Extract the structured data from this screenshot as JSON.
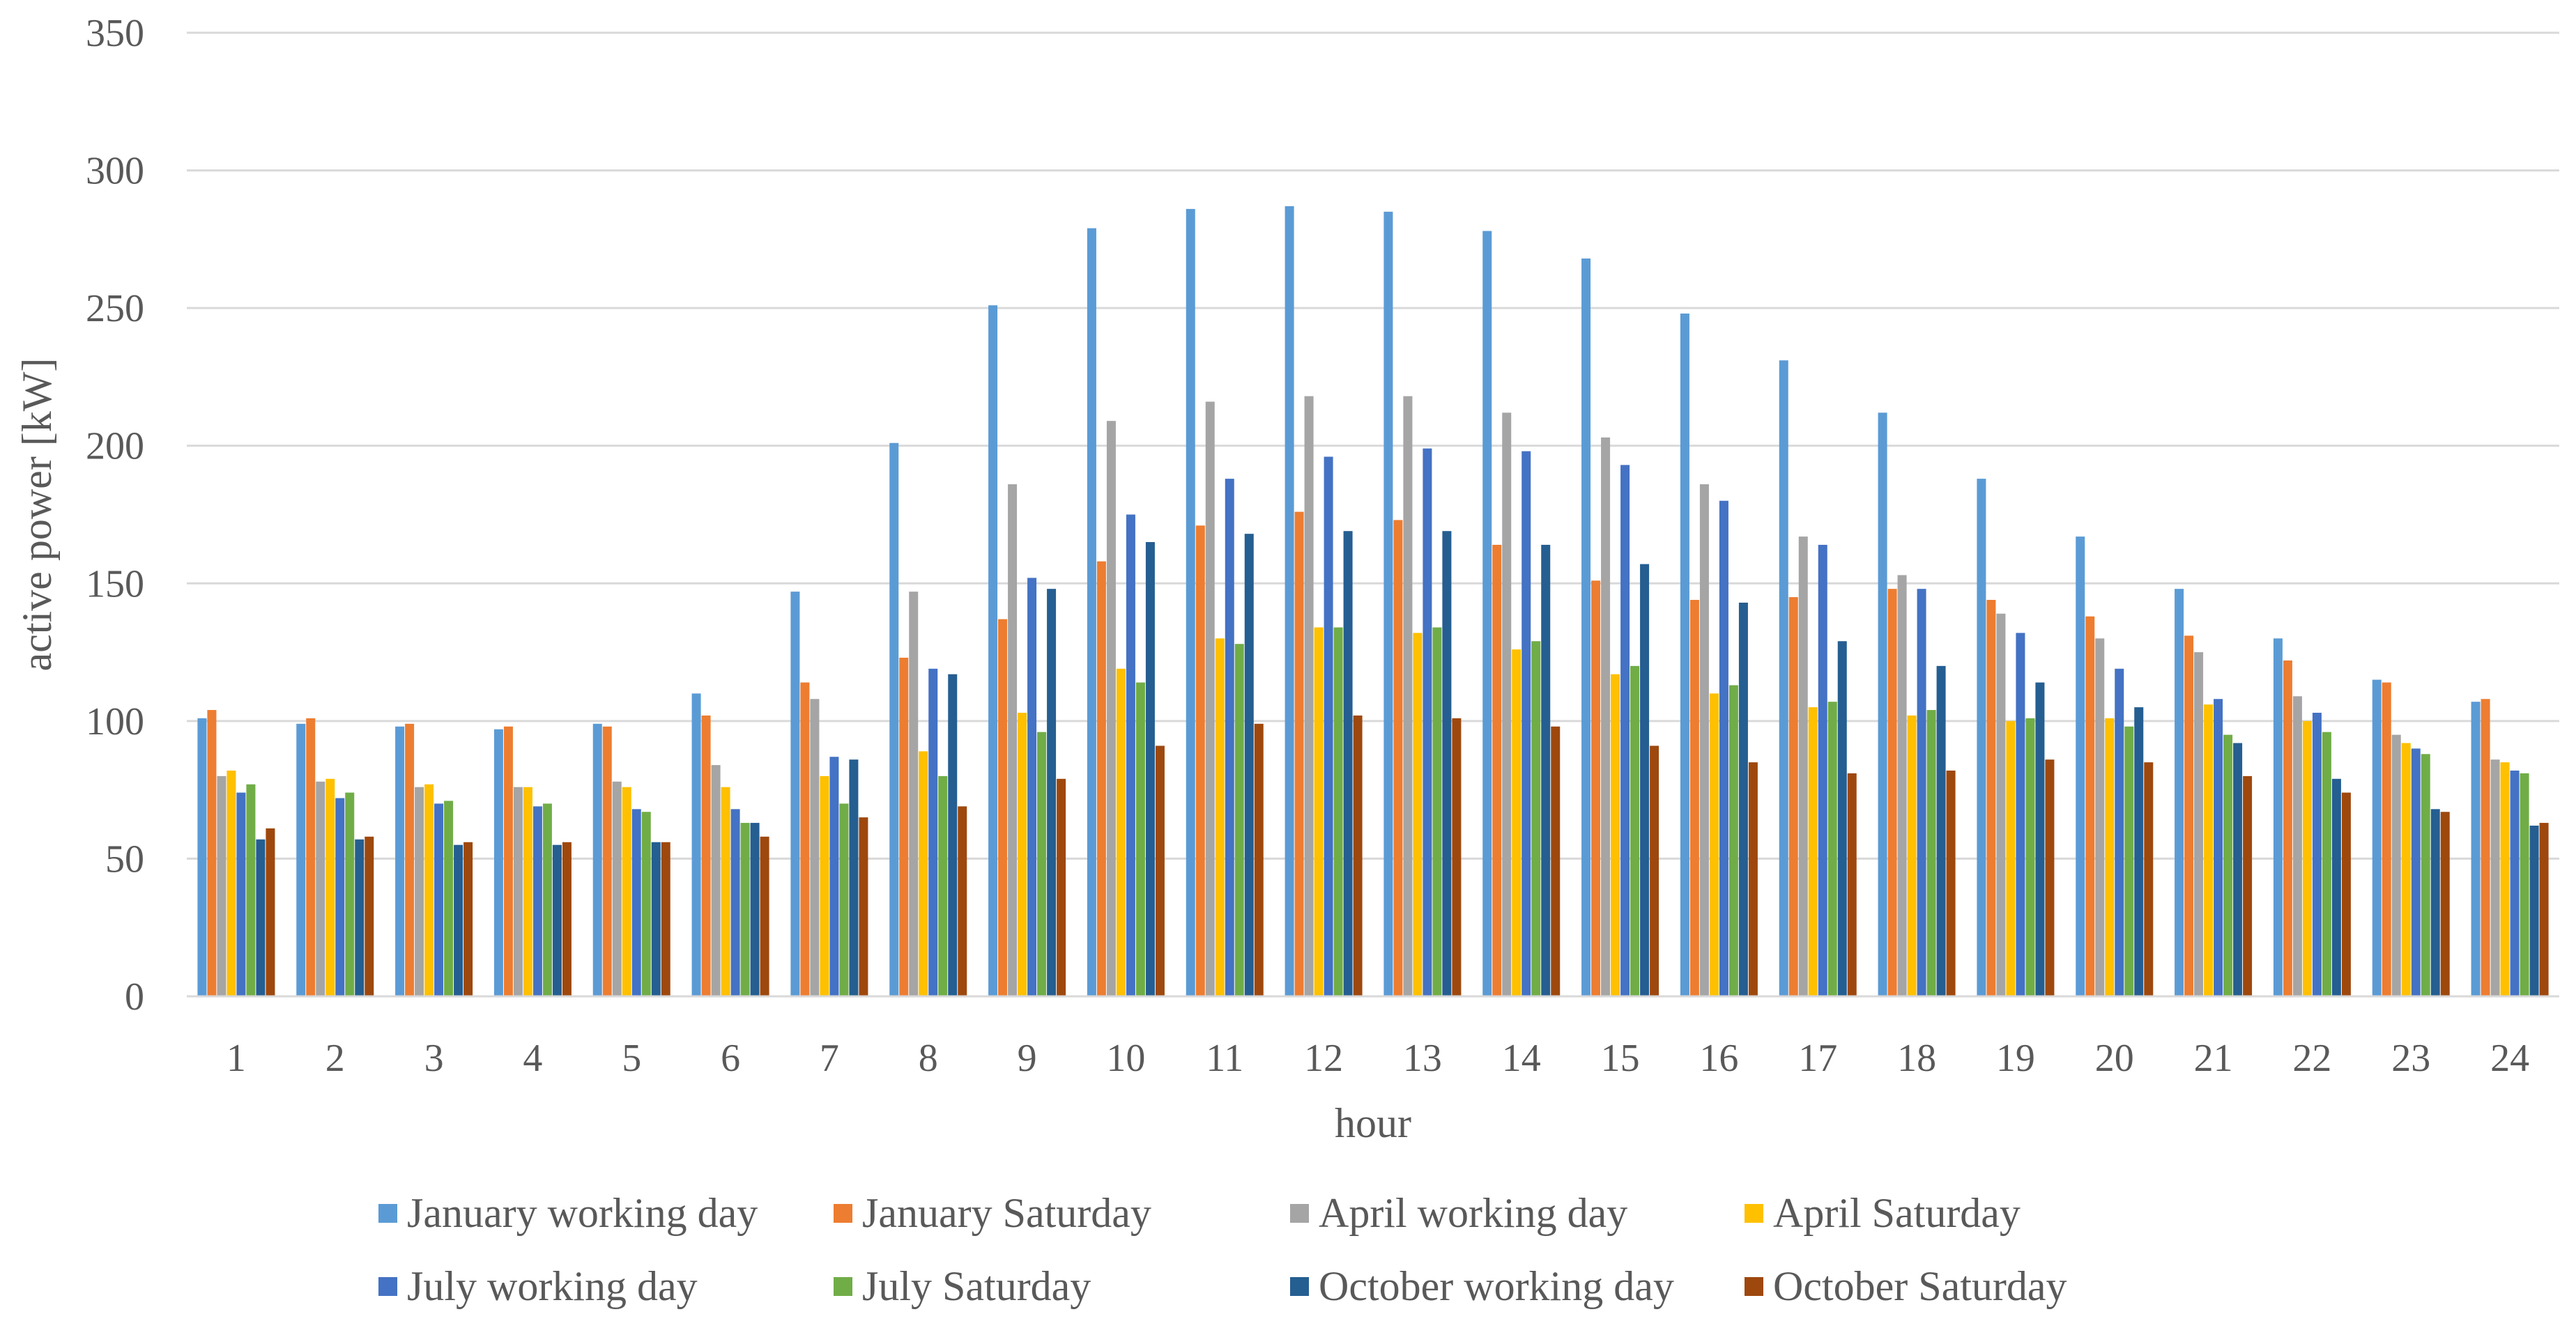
{
  "chart_data": {
    "type": "bar",
    "title": "",
    "xlabel": "hour",
    "ylabel": "active power [kW]",
    "ylim": [
      0,
      350
    ],
    "yticks": [
      "0",
      "50",
      "100",
      "150",
      "200",
      "250",
      "300",
      "350"
    ],
    "grid": true,
    "legend_position": "bottom",
    "categories": [
      "1",
      "2",
      "3",
      "4",
      "5",
      "6",
      "7",
      "8",
      "9",
      "10",
      "11",
      "12",
      "13",
      "14",
      "15",
      "16",
      "17",
      "18",
      "19",
      "20",
      "21",
      "22",
      "23",
      "24"
    ],
    "series": [
      {
        "name": "January working day",
        "color": "#5B9BD5",
        "values": [
          101,
          99,
          98,
          97,
          99,
          110,
          147,
          201,
          251,
          279,
          286,
          287,
          285,
          278,
          268,
          248,
          231,
          212,
          188,
          167,
          148,
          130,
          115,
          107
        ]
      },
      {
        "name": "January Saturday",
        "color": "#ED7D31",
        "values": [
          104,
          101,
          99,
          98,
          98,
          102,
          114,
          123,
          137,
          158,
          171,
          176,
          173,
          164,
          151,
          144,
          145,
          148,
          144,
          138,
          131,
          122,
          114,
          108
        ]
      },
      {
        "name": "April working day",
        "color": "#A5A5A5",
        "values": [
          80,
          78,
          76,
          76,
          78,
          84,
          108,
          147,
          186,
          209,
          216,
          218,
          218,
          212,
          203,
          186,
          167,
          153,
          139,
          130,
          125,
          109,
          95,
          86
        ]
      },
      {
        "name": "April Saturday",
        "color": "#FFC000",
        "values": [
          82,
          79,
          77,
          76,
          76,
          76,
          80,
          89,
          103,
          119,
          130,
          134,
          132,
          126,
          117,
          110,
          105,
          102,
          100,
          101,
          106,
          100,
          92,
          85
        ]
      },
      {
        "name": "July working day",
        "color": "#4472C4",
        "values": [
          74,
          72,
          70,
          69,
          68,
          68,
          87,
          119,
          152,
          175,
          188,
          196,
          199,
          198,
          193,
          180,
          164,
          148,
          132,
          119,
          108,
          103,
          90,
          82
        ]
      },
      {
        "name": "July Saturday",
        "color": "#70AD47",
        "values": [
          77,
          74,
          71,
          70,
          67,
          63,
          70,
          80,
          96,
          114,
          128,
          134,
          134,
          129,
          120,
          113,
          107,
          104,
          101,
          98,
          95,
          96,
          88,
          81
        ]
      },
      {
        "name": "October working day",
        "color": "#255E91",
        "values": [
          57,
          57,
          55,
          55,
          56,
          63,
          86,
          117,
          148,
          165,
          168,
          169,
          169,
          164,
          157,
          143,
          129,
          120,
          114,
          105,
          92,
          79,
          68,
          62
        ]
      },
      {
        "name": "October Saturday",
        "color": "#9E480E",
        "values": [
          61,
          58,
          56,
          56,
          56,
          58,
          65,
          69,
          79,
          91,
          99,
          102,
          101,
          98,
          91,
          85,
          81,
          82,
          86,
          85,
          80,
          74,
          67,
          63
        ]
      }
    ]
  }
}
